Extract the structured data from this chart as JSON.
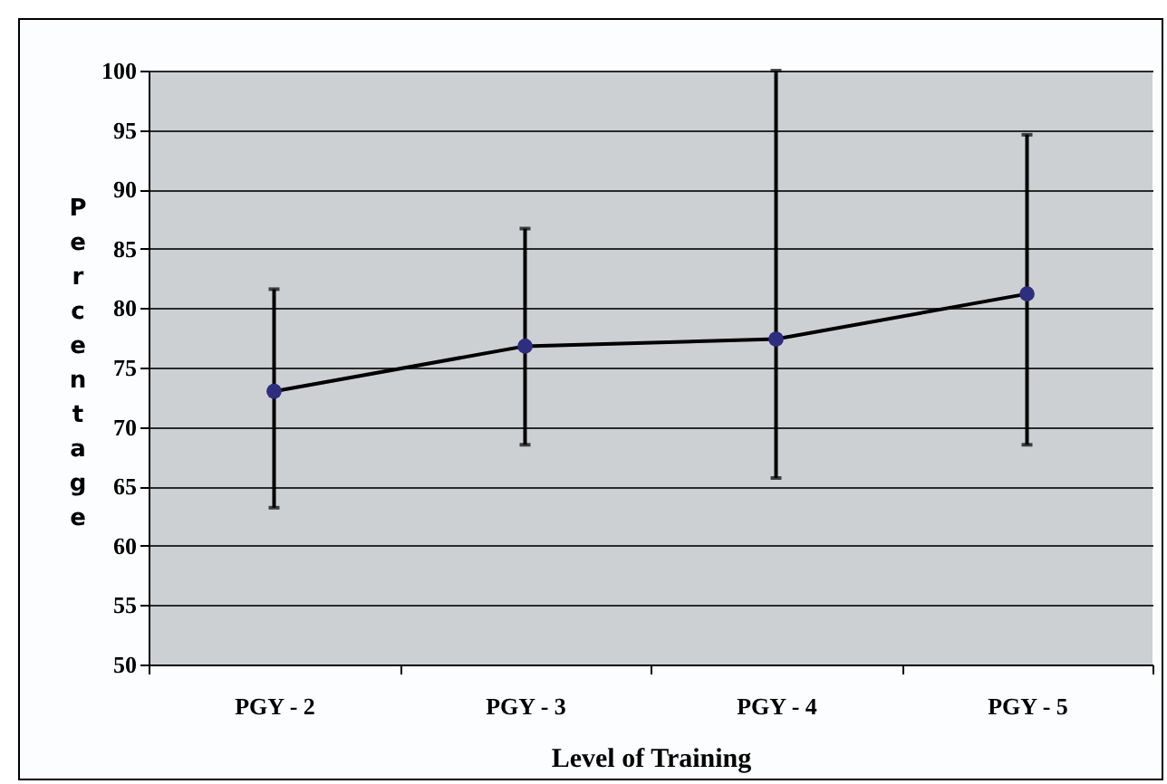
{
  "chart_data": {
    "type": "line",
    "xlabel": "Level of Training",
    "ylabel": "Percentage",
    "categories": [
      "PGY - 2",
      "PGY - 3",
      "PGY - 4",
      "PGY - 5"
    ],
    "series": [
      {
        "color": "#2e2e7e",
        "values": [
          73.0,
          76.8,
          77.4,
          81.2
        ],
        "errors": [
          [
            63.2,
            81.6
          ],
          [
            68.5,
            86.7
          ],
          [
            65.7,
            100
          ],
          [
            68.5,
            94.6
          ]
        ]
      }
    ],
    "ylim": [
      50,
      100
    ],
    "yticks": [
      50,
      55,
      60,
      65,
      70,
      75,
      80,
      85,
      90,
      95,
      100
    ],
    "grid": "y",
    "marker": "circle",
    "line_style": "solid"
  }
}
